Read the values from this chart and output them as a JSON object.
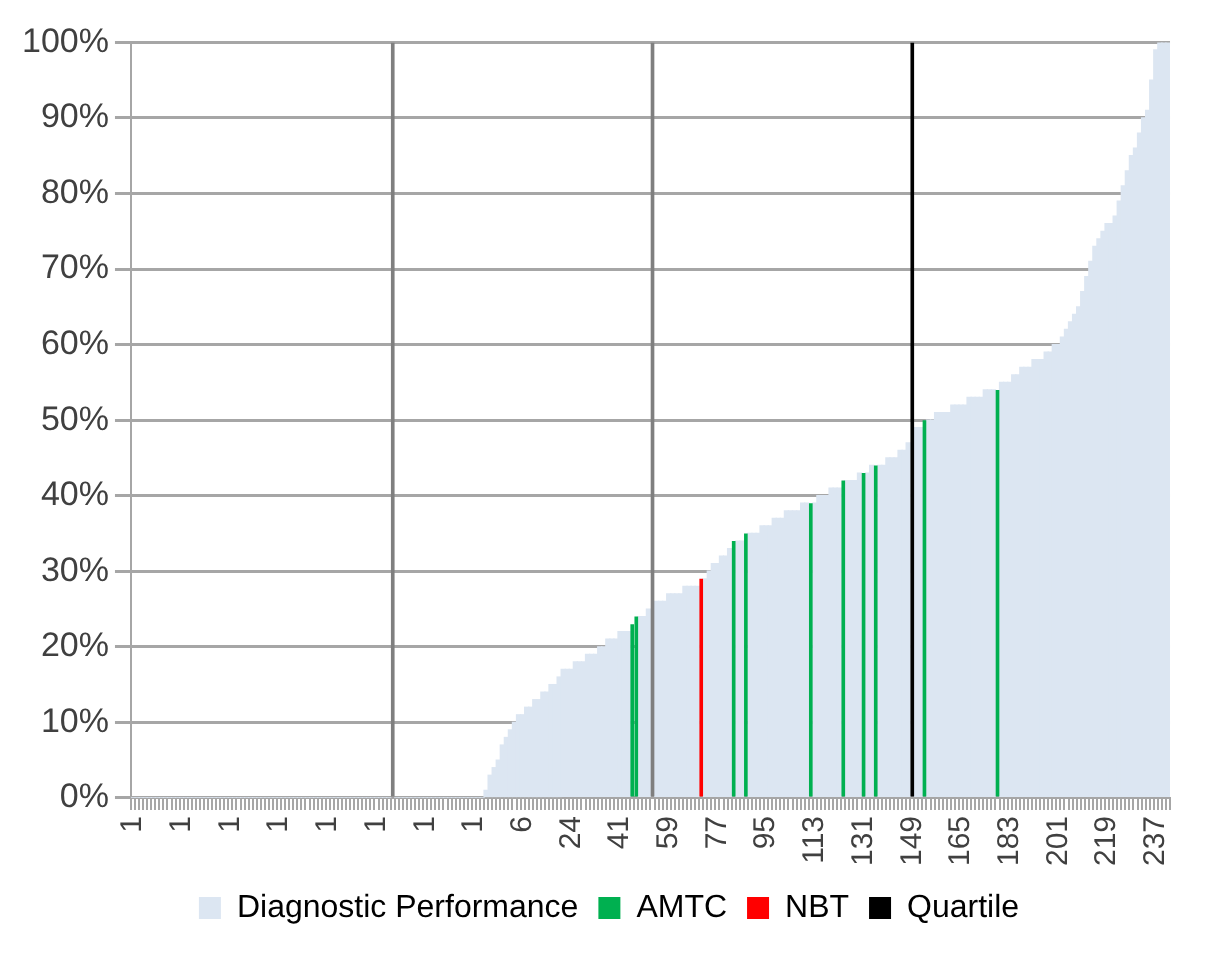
{
  "chart_data": {
    "type": "bar",
    "categories": [
      "1",
      null,
      null,
      null,
      null,
      null,
      null,
      null,
      null,
      null,
      null,
      null,
      "1",
      null,
      null,
      null,
      null,
      null,
      null,
      null,
      null,
      null,
      null,
      null,
      "1",
      null,
      null,
      null,
      null,
      null,
      null,
      null,
      null,
      null,
      null,
      null,
      "1",
      null,
      null,
      null,
      null,
      null,
      null,
      null,
      null,
      null,
      null,
      null,
      "1",
      null,
      null,
      null,
      null,
      null,
      null,
      null,
      null,
      null,
      null,
      null,
      "1",
      null,
      null,
      null,
      null,
      null,
      null,
      null,
      null,
      null,
      null,
      null,
      "1",
      null,
      null,
      null,
      null,
      null,
      null,
      null,
      null,
      null,
      null,
      null,
      "1",
      null,
      null,
      null,
      null,
      null,
      null,
      null,
      null,
      null,
      null,
      null,
      "6",
      null,
      null,
      null,
      null,
      null,
      null,
      null,
      null,
      null,
      null,
      null,
      "24",
      null,
      null,
      null,
      null,
      null,
      null,
      null,
      null,
      null,
      null,
      null,
      "41",
      null,
      null,
      null,
      null,
      null,
      null,
      null,
      null,
      null,
      null,
      null,
      "59",
      null,
      null,
      null,
      null,
      null,
      null,
      null,
      null,
      null,
      null,
      null,
      "77",
      null,
      null,
      null,
      null,
      null,
      null,
      null,
      null,
      null,
      null,
      null,
      "95",
      null,
      null,
      null,
      null,
      null,
      null,
      null,
      null,
      null,
      null,
      null,
      "113",
      null,
      null,
      null,
      null,
      null,
      null,
      null,
      null,
      null,
      null,
      null,
      "131",
      null,
      null,
      null,
      null,
      null,
      null,
      null,
      null,
      null,
      null,
      null,
      "149",
      null,
      null,
      null,
      null,
      null,
      null,
      null,
      null,
      null,
      null,
      null,
      "165",
      null,
      null,
      null,
      null,
      null,
      null,
      null,
      null,
      null,
      null,
      null,
      "183",
      null,
      null,
      null,
      null,
      null,
      null,
      null,
      null,
      null,
      null,
      null,
      "201",
      null,
      null,
      null,
      null,
      null,
      null,
      null,
      null,
      null,
      null,
      null,
      "219",
      null,
      null,
      null,
      null,
      null,
      null,
      null,
      null,
      null,
      null,
      null,
      "237",
      null,
      null,
      null
    ],
    "series": [
      {
        "name": "Diagnostic Performance",
        "color": "#dce6f2",
        "values": [
          0,
          0,
          0,
          0,
          0,
          0,
          0,
          0,
          0,
          0,
          0,
          0,
          0,
          0,
          0,
          0,
          0,
          0,
          0,
          0,
          0,
          0,
          0,
          0,
          0,
          0,
          0,
          0,
          0,
          0,
          0,
          0,
          0,
          0,
          0,
          0,
          0,
          0,
          0,
          0,
          0,
          0,
          0,
          0,
          0,
          0,
          0,
          0,
          0,
          0,
          0,
          0,
          0,
          0,
          0,
          0,
          0,
          0,
          0,
          0,
          0,
          0,
          0,
          0,
          null,
          0,
          0,
          0,
          0,
          0,
          0,
          0,
          0,
          0,
          0,
          0,
          0,
          0,
          0,
          0,
          0,
          0,
          0,
          0,
          0,
          0,
          0,
          1,
          3,
          4,
          5,
          7,
          8,
          9,
          10,
          11,
          11,
          12,
          12,
          13,
          13,
          14,
          14,
          15,
          15,
          16,
          17,
          17,
          17,
          18,
          18,
          18,
          19,
          19,
          19,
          20,
          20,
          21,
          21,
          21,
          22,
          22,
          22,
          null,
          null,
          24,
          24,
          25,
          null,
          26,
          26,
          26,
          27,
          27,
          27,
          27,
          28,
          28,
          28,
          28,
          null,
          29,
          30,
          31,
          31,
          32,
          32,
          33,
          null,
          34,
          34,
          null,
          35,
          35,
          35,
          36,
          36,
          36,
          37,
          37,
          37,
          38,
          38,
          38,
          38,
          39,
          39,
          null,
          39,
          40,
          40,
          40,
          41,
          41,
          41,
          null,
          42,
          42,
          42,
          43,
          null,
          43,
          44,
          null,
          44,
          44,
          45,
          45,
          45,
          46,
          46,
          47,
          null,
          49,
          49,
          null,
          50,
          50,
          51,
          51,
          51,
          51,
          52,
          52,
          52,
          52,
          53,
          53,
          53,
          53,
          54,
          54,
          54,
          null,
          55,
          55,
          55,
          56,
          56,
          57,
          57,
          57,
          58,
          58,
          58,
          59,
          59,
          60,
          60,
          61,
          62,
          63,
          64,
          65,
          67,
          69,
          71,
          73,
          74,
          75,
          76,
          76,
          77,
          79,
          81,
          83,
          85,
          86,
          88,
          90,
          91,
          95,
          99,
          100,
          100,
          100
        ]
      },
      {
        "name": "AMTC",
        "color": "#00b050",
        "values": [
          null,
          null,
          null,
          null,
          null,
          null,
          null,
          null,
          null,
          null,
          null,
          null,
          null,
          null,
          null,
          null,
          null,
          null,
          null,
          null,
          null,
          null,
          null,
          null,
          null,
          null,
          null,
          null,
          null,
          null,
          null,
          null,
          null,
          null,
          null,
          null,
          null,
          null,
          null,
          null,
          null,
          null,
          null,
          null,
          null,
          null,
          null,
          null,
          null,
          null,
          null,
          null,
          null,
          null,
          null,
          null,
          null,
          null,
          null,
          null,
          null,
          null,
          null,
          null,
          null,
          null,
          null,
          null,
          null,
          null,
          null,
          null,
          null,
          null,
          null,
          null,
          null,
          null,
          null,
          null,
          null,
          null,
          null,
          null,
          null,
          null,
          null,
          null,
          null,
          null,
          null,
          null,
          null,
          null,
          null,
          null,
          null,
          null,
          null,
          null,
          null,
          null,
          null,
          null,
          null,
          null,
          null,
          null,
          null,
          null,
          null,
          null,
          null,
          null,
          null,
          null,
          null,
          null,
          null,
          null,
          null,
          null,
          null,
          23,
          24,
          null,
          null,
          null,
          null,
          null,
          null,
          null,
          null,
          null,
          null,
          null,
          null,
          null,
          null,
          null,
          null,
          null,
          null,
          null,
          null,
          null,
          null,
          null,
          34,
          null,
          null,
          35,
          null,
          null,
          null,
          null,
          null,
          null,
          null,
          null,
          null,
          null,
          null,
          null,
          null,
          null,
          null,
          39,
          null,
          null,
          null,
          null,
          null,
          null,
          null,
          42,
          null,
          null,
          null,
          null,
          43,
          null,
          null,
          44,
          null,
          null,
          null,
          null,
          null,
          null,
          null,
          null,
          null,
          null,
          null,
          50,
          null,
          null,
          null,
          null,
          null,
          null,
          null,
          null,
          null,
          null,
          null,
          null,
          null,
          null,
          null,
          null,
          null,
          54,
          null,
          null,
          null,
          null,
          null,
          null,
          null,
          null,
          null,
          null,
          null,
          null,
          null,
          null,
          null,
          null,
          null,
          null,
          null,
          null,
          null,
          null,
          null,
          null,
          null,
          null,
          null,
          null,
          null,
          null,
          null,
          null,
          null,
          null,
          null,
          null,
          null,
          null,
          null,
          null,
          null,
          null
        ]
      },
      {
        "name": "NBT",
        "color": "#ff0000",
        "values": [
          null,
          null,
          null,
          null,
          null,
          null,
          null,
          null,
          null,
          null,
          null,
          null,
          null,
          null,
          null,
          null,
          null,
          null,
          null,
          null,
          null,
          null,
          null,
          null,
          null,
          null,
          null,
          null,
          null,
          null,
          null,
          null,
          null,
          null,
          null,
          null,
          null,
          null,
          null,
          null,
          null,
          null,
          null,
          null,
          null,
          null,
          null,
          null,
          null,
          null,
          null,
          null,
          null,
          null,
          null,
          null,
          null,
          null,
          null,
          null,
          null,
          null,
          null,
          null,
          null,
          null,
          null,
          null,
          null,
          null,
          null,
          null,
          null,
          null,
          null,
          null,
          null,
          null,
          null,
          null,
          null,
          null,
          null,
          null,
          null,
          null,
          null,
          null,
          null,
          null,
          null,
          null,
          null,
          null,
          null,
          null,
          null,
          null,
          null,
          null,
          null,
          null,
          null,
          null,
          null,
          null,
          null,
          null,
          null,
          null,
          null,
          null,
          null,
          null,
          null,
          null,
          null,
          null,
          null,
          null,
          null,
          null,
          null,
          null,
          null,
          null,
          null,
          null,
          null,
          null,
          null,
          null,
          null,
          null,
          null,
          null,
          null,
          null,
          null,
          null,
          29,
          null,
          null,
          null,
          null,
          null,
          null,
          null,
          null,
          null,
          null,
          null,
          null,
          null,
          null,
          null,
          null,
          null,
          null,
          null,
          null,
          null,
          null,
          null,
          null,
          null,
          null,
          null,
          null,
          null,
          null,
          null,
          null,
          null,
          null,
          null,
          null,
          null,
          null,
          null,
          null,
          null,
          null,
          null,
          null,
          null,
          null,
          null,
          null,
          null,
          null,
          null,
          null,
          null,
          null,
          null,
          null,
          null,
          null,
          null,
          null,
          null,
          null,
          null,
          null,
          null,
          null,
          null,
          null,
          null,
          null,
          null,
          null,
          null,
          null,
          null,
          null,
          null,
          null,
          null,
          null,
          null,
          null,
          null,
          null,
          null,
          null,
          null,
          null,
          null,
          null,
          null,
          null,
          null,
          null,
          null,
          null,
          null,
          null,
          null,
          null,
          null,
          null,
          null,
          null,
          null,
          null,
          null,
          null,
          null,
          null,
          null,
          null,
          null,
          null,
          null
        ]
      },
      {
        "name": "Quartile",
        "color": "#000000",
        "values": [
          null,
          null,
          null,
          null,
          null,
          null,
          null,
          null,
          null,
          null,
          null,
          null,
          null,
          null,
          null,
          null,
          null,
          null,
          null,
          null,
          null,
          null,
          null,
          null,
          null,
          null,
          null,
          null,
          null,
          null,
          null,
          null,
          null,
          null,
          null,
          null,
          null,
          null,
          null,
          null,
          null,
          null,
          null,
          null,
          null,
          null,
          null,
          null,
          null,
          null,
          null,
          null,
          null,
          null,
          null,
          null,
          null,
          null,
          null,
          null,
          null,
          null,
          null,
          null,
          null,
          null,
          null,
          null,
          null,
          null,
          null,
          null,
          null,
          null,
          null,
          null,
          null,
          null,
          null,
          null,
          null,
          null,
          null,
          null,
          null,
          null,
          null,
          null,
          null,
          null,
          null,
          null,
          null,
          null,
          null,
          null,
          null,
          null,
          null,
          null,
          null,
          null,
          null,
          null,
          null,
          null,
          null,
          null,
          null,
          null,
          null,
          null,
          null,
          null,
          null,
          null,
          null,
          null,
          null,
          null,
          null,
          null,
          null,
          null,
          null,
          null,
          null,
          null,
          null,
          null,
          null,
          null,
          null,
          null,
          null,
          null,
          null,
          null,
          null,
          null,
          null,
          null,
          null,
          null,
          null,
          null,
          null,
          null,
          null,
          null,
          null,
          null,
          null,
          null,
          null,
          null,
          null,
          null,
          null,
          null,
          null,
          null,
          null,
          null,
          null,
          null,
          null,
          null,
          null,
          null,
          null,
          null,
          null,
          null,
          null,
          null,
          null,
          null,
          null,
          null,
          null,
          null,
          null,
          null,
          null,
          null,
          null,
          null,
          null,
          null,
          null,
          null,
          100,
          null,
          null,
          null,
          null,
          null,
          null,
          null,
          null,
          null,
          null,
          null,
          null,
          null,
          null,
          null,
          null,
          null,
          null,
          null,
          null,
          null,
          null,
          null,
          null,
          null,
          null,
          null,
          null,
          null,
          null,
          null,
          null,
          null,
          null,
          null,
          null,
          null,
          null,
          null,
          null,
          null,
          null,
          null,
          null,
          null,
          null,
          null,
          null,
          null,
          null,
          null,
          null,
          null,
          null,
          null,
          null,
          null,
          null,
          null,
          null,
          null,
          null,
          null
        ]
      },
      {
        "color": "#7f7f7f",
        "values": [
          null,
          null,
          null,
          null,
          null,
          null,
          null,
          null,
          null,
          null,
          null,
          null,
          null,
          null,
          null,
          null,
          null,
          null,
          null,
          null,
          null,
          null,
          null,
          null,
          null,
          null,
          null,
          null,
          null,
          null,
          null,
          null,
          null,
          null,
          null,
          null,
          null,
          null,
          null,
          null,
          null,
          null,
          null,
          null,
          null,
          null,
          null,
          null,
          null,
          null,
          null,
          null,
          null,
          null,
          null,
          null,
          null,
          null,
          null,
          null,
          null,
          null,
          null,
          null,
          100,
          null,
          null,
          null,
          null,
          null,
          null,
          null,
          null,
          null,
          null,
          null,
          null,
          null,
          null,
          null,
          null,
          null,
          null,
          null,
          null,
          null,
          null,
          null,
          null,
          null,
          null,
          null,
          null,
          null,
          null,
          null,
          null,
          null,
          null,
          null,
          null,
          null,
          null,
          null,
          null,
          null,
          null,
          null,
          null,
          null,
          null,
          null,
          null,
          null,
          null,
          null,
          null,
          null,
          null,
          null,
          null,
          null,
          null,
          null,
          null,
          null,
          null,
          null,
          100,
          null,
          null,
          null,
          null,
          null,
          null,
          null,
          null,
          null,
          null,
          null,
          null,
          null,
          null,
          null,
          null,
          null,
          null,
          null,
          null,
          null,
          null,
          null,
          null,
          null,
          null,
          null,
          null,
          null,
          null,
          null,
          null,
          null,
          null,
          null,
          null,
          null,
          null,
          null,
          null,
          null,
          null,
          null,
          null,
          null,
          null,
          null,
          null,
          null,
          null,
          null,
          null,
          null,
          null,
          null,
          null,
          null,
          null,
          null,
          null,
          null,
          null,
          null,
          null,
          null,
          null,
          null,
          null,
          null,
          null,
          null,
          null,
          null,
          null,
          null,
          null,
          null,
          null,
          null,
          null,
          null,
          null,
          null,
          null,
          null,
          null,
          null,
          null,
          null,
          null,
          null,
          null,
          null,
          null,
          null,
          null,
          null,
          null,
          null,
          null,
          null,
          null,
          null,
          null,
          null,
          null,
          null,
          null,
          null,
          null,
          null,
          null,
          null,
          null,
          null,
          null,
          null,
          null,
          null,
          null,
          null,
          null,
          null,
          null,
          null,
          null,
          null
        ]
      }
    ],
    "ylim": [
      0,
      100
    ],
    "yticks": [
      {
        "value": 0,
        "label": "0%"
      },
      {
        "value": 10,
        "label": "10%"
      },
      {
        "value": 20,
        "label": "20%"
      },
      {
        "value": 30,
        "label": "30%"
      },
      {
        "value": 40,
        "label": "40%"
      },
      {
        "value": 50,
        "label": "50%"
      },
      {
        "value": 60,
        "label": "60%"
      },
      {
        "value": 70,
        "label": "70%"
      },
      {
        "value": 80,
        "label": "80%"
      },
      {
        "value": 90,
        "label": "90%"
      },
      {
        "value": 100,
        "label": "100%"
      }
    ],
    "grid": "y",
    "legend": "bottom"
  }
}
